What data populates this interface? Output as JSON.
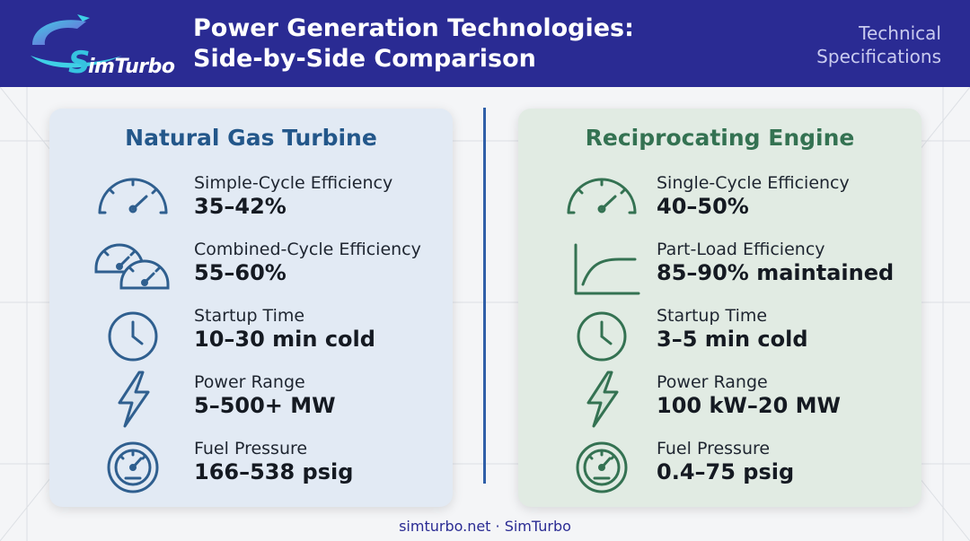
{
  "header": {
    "logo_text": "imTurbo",
    "logo_initial": "S",
    "title_line1": "Power Generation Technologies:",
    "title_line2": "Side-by-Side Comparison",
    "tag_line1": "Technical",
    "tag_line2": "Specifications"
  },
  "left_card": {
    "title": "Natural Gas Turbine",
    "accent_color": "#2f5f8f",
    "rows": [
      {
        "icon": "speedometer-icon",
        "label": "Simple-Cycle Efficiency",
        "value": "35–42%"
      },
      {
        "icon": "double-speedometer-icon",
        "label": "Combined-Cycle Efficiency",
        "value": "55–60%"
      },
      {
        "icon": "clock-icon",
        "label": "Startup Time",
        "value": "10–30 min cold"
      },
      {
        "icon": "lightning-icon",
        "label": "Power Range",
        "value": "5–500+ MW"
      },
      {
        "icon": "pressure-gauge-icon",
        "label": "Fuel Pressure",
        "value": "166–538 psig"
      }
    ]
  },
  "right_card": {
    "title": "Reciprocating Engine",
    "accent_color": "#347252",
    "rows": [
      {
        "icon": "speedometer-icon",
        "label": "Single-Cycle Efficiency",
        "value": "40–50%"
      },
      {
        "icon": "curve-chart-icon",
        "label": "Part-Load Efficiency",
        "value": "85–90% maintained"
      },
      {
        "icon": "clock-icon",
        "label": "Startup Time",
        "value": "3–5 min cold"
      },
      {
        "icon": "lightning-icon",
        "label": "Power Range",
        "value": "100 kW–20 MW"
      },
      {
        "icon": "pressure-gauge-icon",
        "label": "Fuel Pressure",
        "value": "0.4–75 psig"
      }
    ]
  },
  "footer": {
    "text": "simturbo.net · SimTurbo"
  }
}
